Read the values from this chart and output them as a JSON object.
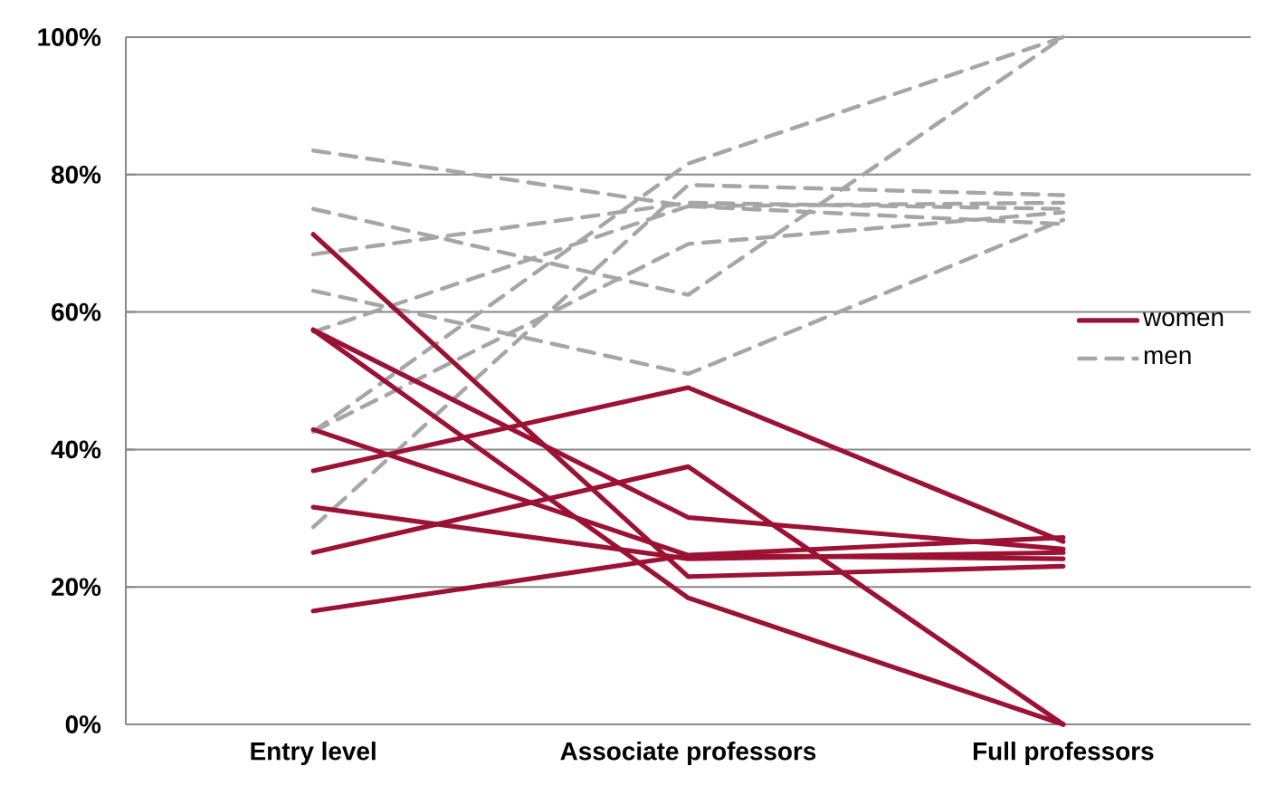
{
  "chart_data": {
    "type": "line",
    "categories": [
      "Entry level",
      "Associate professors",
      "Full professors"
    ],
    "series": [
      {
        "name": "women",
        "color": "#9b1235",
        "line_style": "solid",
        "values": [
          71.3,
          21.5,
          23.0
        ]
      },
      {
        "color": "#9b1235",
        "line_style": "solid",
        "values": [
          57.4,
          30.1,
          25.5
        ]
      },
      {
        "color": "#9b1235",
        "line_style": "solid",
        "values": [
          57.4,
          18.4,
          0
        ]
      },
      {
        "color": "#9b1235",
        "line_style": "solid",
        "values": [
          42.9,
          24.6,
          24.1
        ]
      },
      {
        "color": "#9b1235",
        "line_style": "solid",
        "values": [
          36.9,
          49.0,
          26.6
        ]
      },
      {
        "color": "#9b1235",
        "line_style": "solid",
        "values": [
          31.6,
          24.1,
          25.0
        ]
      },
      {
        "color": "#9b1235",
        "line_style": "solid",
        "values": [
          25.0,
          37.5,
          0
        ]
      },
      {
        "color": "#9b1235",
        "line_style": "solid",
        "values": [
          16.5,
          24.6,
          27.2
        ]
      },
      {
        "name": "men",
        "color": "#a6a6a6",
        "line_style": "dashed",
        "values": [
          28.7,
          78.5,
          77.0
        ]
      },
      {
        "color": "#a6a6a6",
        "line_style": "dashed",
        "values": [
          42.6,
          69.9,
          74.5
        ]
      },
      {
        "color": "#a6a6a6",
        "line_style": "dashed",
        "values": [
          42.6,
          81.6,
          100
        ]
      },
      {
        "color": "#a6a6a6",
        "line_style": "dashed",
        "values": [
          57.1,
          75.4,
          75.9
        ]
      },
      {
        "color": "#a6a6a6",
        "line_style": "dashed",
        "values": [
          63.1,
          51.0,
          73.4
        ]
      },
      {
        "color": "#a6a6a6",
        "line_style": "dashed",
        "values": [
          68.4,
          75.9,
          75.0
        ]
      },
      {
        "color": "#a6a6a6",
        "line_style": "dashed",
        "values": [
          75.0,
          62.5,
          100
        ]
      },
      {
        "color": "#a6a6a6",
        "line_style": "dashed",
        "values": [
          83.5,
          75.4,
          72.8
        ]
      }
    ],
    "ylim": [
      0,
      100
    ],
    "yticks": [
      {
        "value": 0,
        "label": "0%"
      },
      {
        "value": 20,
        "label": "20%"
      },
      {
        "value": 40,
        "label": "40%"
      },
      {
        "value": 60,
        "label": "60%"
      },
      {
        "value": 80,
        "label": "80%"
      },
      {
        "value": 100,
        "label": "100%"
      }
    ],
    "grid": "y",
    "legend": "right"
  }
}
